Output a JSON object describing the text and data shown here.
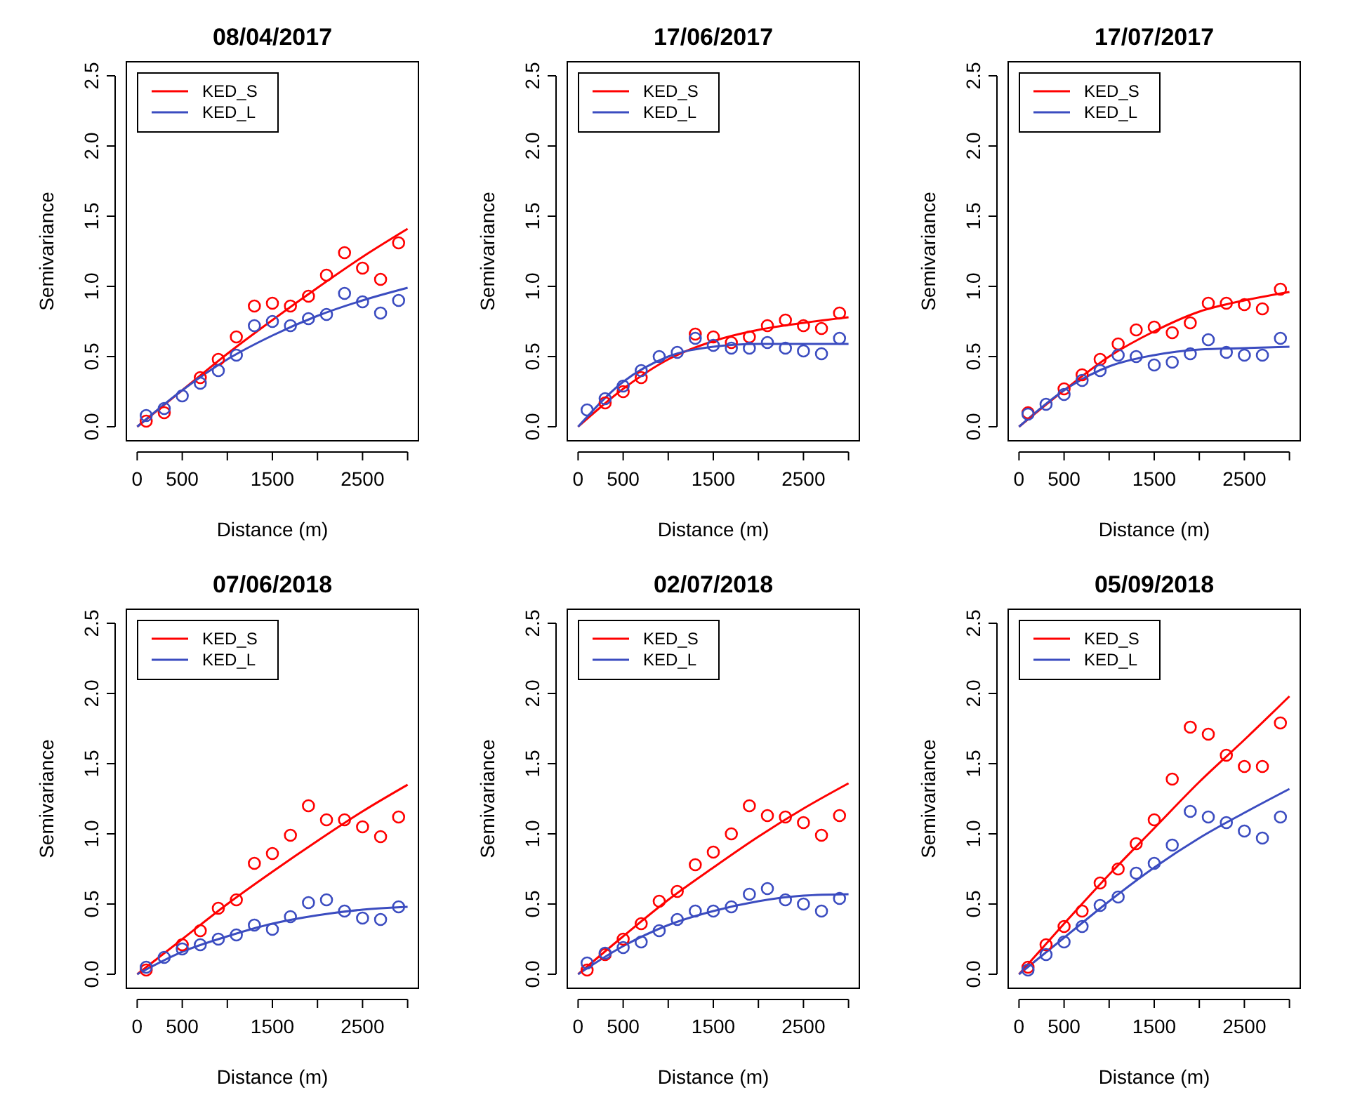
{
  "chart_data": [
    {
      "type": "line",
      "title": "08/04/2017",
      "xlabel": "Distance (m)",
      "ylabel": "Semivariance",
      "xlim": [
        -120,
        3120
      ],
      "xticks": [
        0,
        500,
        {
          "value": 1000,
          "label": null
        },
        1500,
        {
          "value": 2000,
          "label": null
        },
        2500,
        {
          "value": 3000,
          "label": null
        }
      ],
      "ylim": [
        -0.1,
        2.6
      ],
      "yticks": [
        {
          "value": 0,
          "label": "0.0"
        },
        0.5,
        {
          "value": 1,
          "label": "1.0"
        },
        1.5,
        {
          "value": 2,
          "label": "2.0"
        },
        2.5
      ],
      "grid": false,
      "legend": "top left",
      "series": [
        {
          "name": "KED_S",
          "color": "#ff0000",
          "type": "line",
          "marker": "none",
          "x": [
            0,
            500,
            1000,
            1500,
            2000,
            2500,
            3000
          ],
          "values": [
            0,
            0.26,
            0.52,
            0.76,
            0.99,
            1.21,
            1.41
          ]
        },
        {
          "name": "KED_L",
          "color": "#3b4cc0",
          "type": "line",
          "marker": "none",
          "x": [
            0,
            500,
            1000,
            1500,
            2000,
            2500,
            3000
          ],
          "values": [
            0,
            0.26,
            0.48,
            0.65,
            0.79,
            0.9,
            0.99
          ]
        },
        {
          "color": "#ff0000",
          "type": "scatter",
          "marker": "circle",
          "x": [
            100,
            300,
            500,
            700,
            900,
            1100,
            1300,
            1500,
            1700,
            1900,
            2100,
            2300,
            2500,
            2700,
            2900
          ],
          "values": [
            0.04,
            0.1,
            null,
            0.35,
            0.48,
            0.64,
            0.86,
            0.88,
            0.86,
            0.93,
            1.08,
            1.24,
            1.13,
            1.05,
            1.31
          ]
        },
        {
          "color": "#3b4cc0",
          "type": "scatter",
          "marker": "circle",
          "x": [
            100,
            300,
            500,
            700,
            900,
            1100,
            1300,
            1500,
            1700,
            1900,
            2100,
            2300,
            2500,
            2700,
            2900
          ],
          "values": [
            0.08,
            0.13,
            0.22,
            0.31,
            0.4,
            0.51,
            0.72,
            0.75,
            0.72,
            0.77,
            0.8,
            0.95,
            0.89,
            0.81,
            0.9
          ]
        }
      ]
    },
    {
      "type": "line",
      "title": "17/06/2017",
      "xlabel": "Distance (m)",
      "ylabel": "Semivariance",
      "xlim": [
        -120,
        3120
      ],
      "xticks": [
        0,
        500,
        {
          "value": 1000,
          "label": null
        },
        1500,
        {
          "value": 2000,
          "label": null
        },
        2500,
        {
          "value": 3000,
          "label": null
        }
      ],
      "ylim": [
        -0.1,
        2.6
      ],
      "yticks": [
        {
          "value": 0,
          "label": "0.0"
        },
        0.5,
        {
          "value": 1,
          "label": "1.0"
        },
        1.5,
        {
          "value": 2,
          "label": "2.0"
        },
        2.5
      ],
      "grid": false,
      "legend": "top left",
      "series": [
        {
          "name": "KED_S",
          "color": "#ff0000",
          "type": "line",
          "marker": "none",
          "x": [
            0,
            500,
            1000,
            1500,
            2000,
            2500,
            3000
          ],
          "values": [
            0,
            0.27,
            0.48,
            0.61,
            0.69,
            0.74,
            0.78
          ]
        },
        {
          "name": "KED_L",
          "color": "#3b4cc0",
          "type": "line",
          "marker": "none",
          "x": [
            0,
            500,
            1000,
            1500,
            2000,
            2500,
            3000
          ],
          "values": [
            0,
            0.32,
            0.5,
            0.57,
            0.59,
            0.59,
            0.59
          ]
        },
        {
          "color": "#ff0000",
          "type": "scatter",
          "marker": "circle",
          "x": [
            300,
            500,
            700,
            900,
            1100,
            1300,
            1500,
            1700,
            1900,
            2100,
            2300,
            2500,
            2700,
            2900
          ],
          "values": [
            0.17,
            0.25,
            0.35,
            null,
            null,
            0.66,
            0.64,
            0.6,
            0.64,
            0.72,
            0.76,
            0.72,
            0.7,
            0.81
          ]
        },
        {
          "color": "#3b4cc0",
          "type": "scatter",
          "marker": "circle",
          "x": [
            100,
            300,
            500,
            700,
            900,
            1100,
            1300,
            1500,
            1700,
            1900,
            2100,
            2300,
            2500,
            2700,
            2900
          ],
          "values": [
            0.12,
            0.2,
            0.29,
            0.4,
            0.5,
            0.53,
            0.63,
            0.58,
            0.56,
            0.56,
            0.6,
            0.56,
            0.54,
            0.52,
            0.63
          ]
        }
      ]
    },
    {
      "type": "line",
      "title": "17/07/2017",
      "xlabel": "Distance (m)",
      "ylabel": "Semivariance",
      "xlim": [
        -120,
        3120
      ],
      "xticks": [
        0,
        500,
        {
          "value": 1000,
          "label": null
        },
        1500,
        {
          "value": 2000,
          "label": null
        },
        2500,
        {
          "value": 3000,
          "label": null
        }
      ],
      "ylim": [
        -0.1,
        2.6
      ],
      "yticks": [
        {
          "value": 0,
          "label": "0.0"
        },
        0.5,
        {
          "value": 1,
          "label": "1.0"
        },
        1.5,
        {
          "value": 2,
          "label": "2.0"
        },
        2.5
      ],
      "grid": false,
      "legend": "top left",
      "series": [
        {
          "name": "KED_S",
          "color": "#ff0000",
          "type": "line",
          "marker": "none",
          "x": [
            0,
            500,
            1000,
            1500,
            2000,
            2500,
            3000
          ],
          "values": [
            0,
            0.26,
            0.5,
            0.68,
            0.82,
            0.9,
            0.96
          ]
        },
        {
          "name": "KED_L",
          "color": "#3b4cc0",
          "type": "line",
          "marker": "none",
          "x": [
            0,
            500,
            1000,
            1500,
            2000,
            2500,
            3000
          ],
          "values": [
            0,
            0.26,
            0.43,
            0.51,
            0.55,
            0.56,
            0.57
          ]
        },
        {
          "color": "#ff0000",
          "type": "scatter",
          "marker": "circle",
          "x": [
            100,
            300,
            500,
            700,
            900,
            1100,
            1300,
            1500,
            1700,
            1900,
            2100,
            2300,
            2500,
            2700,
            2900
          ],
          "values": [
            0.1,
            null,
            0.27,
            0.37,
            0.48,
            0.59,
            0.69,
            0.71,
            0.67,
            0.74,
            0.88,
            0.88,
            0.87,
            0.84,
            0.98
          ]
        },
        {
          "color": "#3b4cc0",
          "type": "scatter",
          "marker": "circle",
          "x": [
            100,
            300,
            500,
            700,
            900,
            1100,
            1300,
            1500,
            1700,
            1900,
            2100,
            2300,
            2500,
            2700,
            2900
          ],
          "values": [
            0.09,
            0.16,
            0.23,
            0.33,
            0.4,
            0.51,
            0.5,
            0.44,
            0.46,
            0.52,
            0.62,
            0.53,
            0.51,
            0.51,
            0.63
          ]
        }
      ]
    },
    {
      "type": "line",
      "title": "07/06/2018",
      "xlabel": "Distance (m)",
      "ylabel": "Semivariance",
      "xlim": [
        -120,
        3120
      ],
      "xticks": [
        0,
        500,
        {
          "value": 1000,
          "label": null
        },
        1500,
        {
          "value": 2000,
          "label": null
        },
        2500,
        {
          "value": 3000,
          "label": null
        }
      ],
      "ylim": [
        -0.1,
        2.6
      ],
      "yticks": [
        {
          "value": 0,
          "label": "0.0"
        },
        0.5,
        {
          "value": 1,
          "label": "1.0"
        },
        1.5,
        {
          "value": 2,
          "label": "2.0"
        },
        2.5
      ],
      "grid": false,
      "legend": "top left",
      "series": [
        {
          "name": "KED_S",
          "color": "#ff0000",
          "type": "line",
          "marker": "none",
          "x": [
            0,
            500,
            1000,
            1500,
            2000,
            2500,
            3000
          ],
          "values": [
            0,
            0.25,
            0.5,
            0.73,
            0.95,
            1.16,
            1.35
          ]
        },
        {
          "name": "KED_L",
          "color": "#3b4cc0",
          "type": "line",
          "marker": "none",
          "x": [
            0,
            500,
            1000,
            1500,
            2000,
            2500,
            3000
          ],
          "values": [
            0,
            0.16,
            0.27,
            0.36,
            0.42,
            0.46,
            0.48
          ]
        },
        {
          "color": "#ff0000",
          "type": "scatter",
          "marker": "circle",
          "x": [
            100,
            300,
            500,
            700,
            900,
            1100,
            1300,
            1500,
            1700,
            1900,
            2100,
            2300,
            2500,
            2700,
            2900
          ],
          "values": [
            0.03,
            null,
            0.21,
            0.31,
            0.47,
            0.53,
            0.79,
            0.86,
            0.99,
            1.2,
            1.1,
            1.1,
            1.05,
            0.98,
            1.12
          ]
        },
        {
          "color": "#3b4cc0",
          "type": "scatter",
          "marker": "circle",
          "x": [
            100,
            300,
            500,
            700,
            900,
            1100,
            1300,
            1500,
            1700,
            1900,
            2100,
            2300,
            2500,
            2700,
            2900
          ],
          "values": [
            0.05,
            0.12,
            0.18,
            0.21,
            0.25,
            0.28,
            0.35,
            0.32,
            0.41,
            0.51,
            0.53,
            0.45,
            0.4,
            0.39,
            0.48
          ]
        }
      ]
    },
    {
      "type": "line",
      "title": "02/07/2018",
      "xlabel": "Distance (m)",
      "ylabel": "Semivariance",
      "xlim": [
        -120,
        3120
      ],
      "xticks": [
        0,
        500,
        {
          "value": 1000,
          "label": null
        },
        1500,
        {
          "value": 2000,
          "label": null
        },
        2500,
        {
          "value": 3000,
          "label": null
        }
      ],
      "ylim": [
        -0.1,
        2.6
      ],
      "yticks": [
        {
          "value": 0,
          "label": "0.0"
        },
        0.5,
        {
          "value": 1,
          "label": "1.0"
        },
        1.5,
        {
          "value": 2,
          "label": "2.0"
        },
        2.5
      ],
      "grid": false,
      "legend": "top left",
      "series": [
        {
          "name": "KED_S",
          "color": "#ff0000",
          "type": "line",
          "marker": "none",
          "x": [
            0,
            500,
            1000,
            1500,
            2000,
            2500,
            3000
          ],
          "values": [
            0,
            0.27,
            0.53,
            0.76,
            0.98,
            1.18,
            1.36
          ]
        },
        {
          "name": "KED_L",
          "color": "#3b4cc0",
          "type": "line",
          "marker": "none",
          "x": [
            0,
            500,
            1000,
            1500,
            2000,
            2500,
            3000
          ],
          "values": [
            0,
            0.2,
            0.35,
            0.45,
            0.52,
            0.56,
            0.57
          ]
        },
        {
          "color": "#ff0000",
          "type": "scatter",
          "marker": "circle",
          "x": [
            100,
            300,
            500,
            700,
            900,
            1100,
            1300,
            1500,
            1700,
            1900,
            2100,
            2300,
            2500,
            2700,
            2900
          ],
          "values": [
            0.03,
            0.14,
            0.25,
            0.36,
            0.52,
            0.59,
            0.78,
            0.87,
            1.0,
            1.2,
            1.13,
            1.12,
            1.08,
            0.99,
            1.13
          ]
        },
        {
          "color": "#3b4cc0",
          "type": "scatter",
          "marker": "circle",
          "x": [
            100,
            300,
            500,
            700,
            900,
            1100,
            1300,
            1500,
            1700,
            1900,
            2100,
            2300,
            2500,
            2700,
            2900
          ],
          "values": [
            0.08,
            0.15,
            0.19,
            0.23,
            0.31,
            0.39,
            0.45,
            0.45,
            0.48,
            0.57,
            0.61,
            0.53,
            0.5,
            0.45,
            0.54
          ]
        }
      ]
    },
    {
      "type": "line",
      "title": "05/09/2018",
      "xlabel": "Distance (m)",
      "ylabel": "Semivariance",
      "xlim": [
        -120,
        3120
      ],
      "xticks": [
        0,
        500,
        {
          "value": 1000,
          "label": null
        },
        1500,
        {
          "value": 2000,
          "label": null
        },
        2500,
        {
          "value": 3000,
          "label": null
        }
      ],
      "ylim": [
        -0.1,
        2.6
      ],
      "yticks": [
        {
          "value": 0,
          "label": "0.0"
        },
        0.5,
        {
          "value": 1,
          "label": "1.0"
        },
        1.5,
        {
          "value": 2,
          "label": "2.0"
        },
        2.5
      ],
      "grid": false,
      "legend": "top left",
      "series": [
        {
          "name": "KED_S",
          "color": "#ff0000",
          "type": "line",
          "marker": "none",
          "x": [
            0,
            500,
            1000,
            1500,
            2000,
            2500,
            3000
          ],
          "values": [
            0,
            0.36,
            0.71,
            1.04,
            1.37,
            1.67,
            1.98
          ]
        },
        {
          "name": "KED_L",
          "color": "#3b4cc0",
          "type": "line",
          "marker": "none",
          "x": [
            0,
            500,
            1000,
            1500,
            2000,
            2500,
            3000
          ],
          "values": [
            0,
            0.26,
            0.52,
            0.76,
            0.97,
            1.15,
            1.32
          ]
        },
        {
          "color": "#ff0000",
          "type": "scatter",
          "marker": "circle",
          "x": [
            100,
            300,
            500,
            700,
            900,
            1100,
            1300,
            1500,
            1700,
            1900,
            2100,
            2300,
            2500,
            2700,
            2900
          ],
          "values": [
            0.05,
            0.21,
            0.34,
            0.45,
            0.65,
            0.75,
            0.93,
            1.1,
            1.39,
            1.76,
            1.71,
            1.56,
            1.48,
            1.48,
            1.79
          ]
        },
        {
          "color": "#3b4cc0",
          "type": "scatter",
          "marker": "circle",
          "x": [
            100,
            300,
            500,
            700,
            900,
            1100,
            1300,
            1500,
            1700,
            1900,
            2100,
            2300,
            2500,
            2700,
            2900
          ],
          "values": [
            0.03,
            0.14,
            0.23,
            0.34,
            0.49,
            0.55,
            0.72,
            0.79,
            0.92,
            1.16,
            1.12,
            1.08,
            1.02,
            0.97,
            1.12
          ]
        }
      ]
    }
  ]
}
